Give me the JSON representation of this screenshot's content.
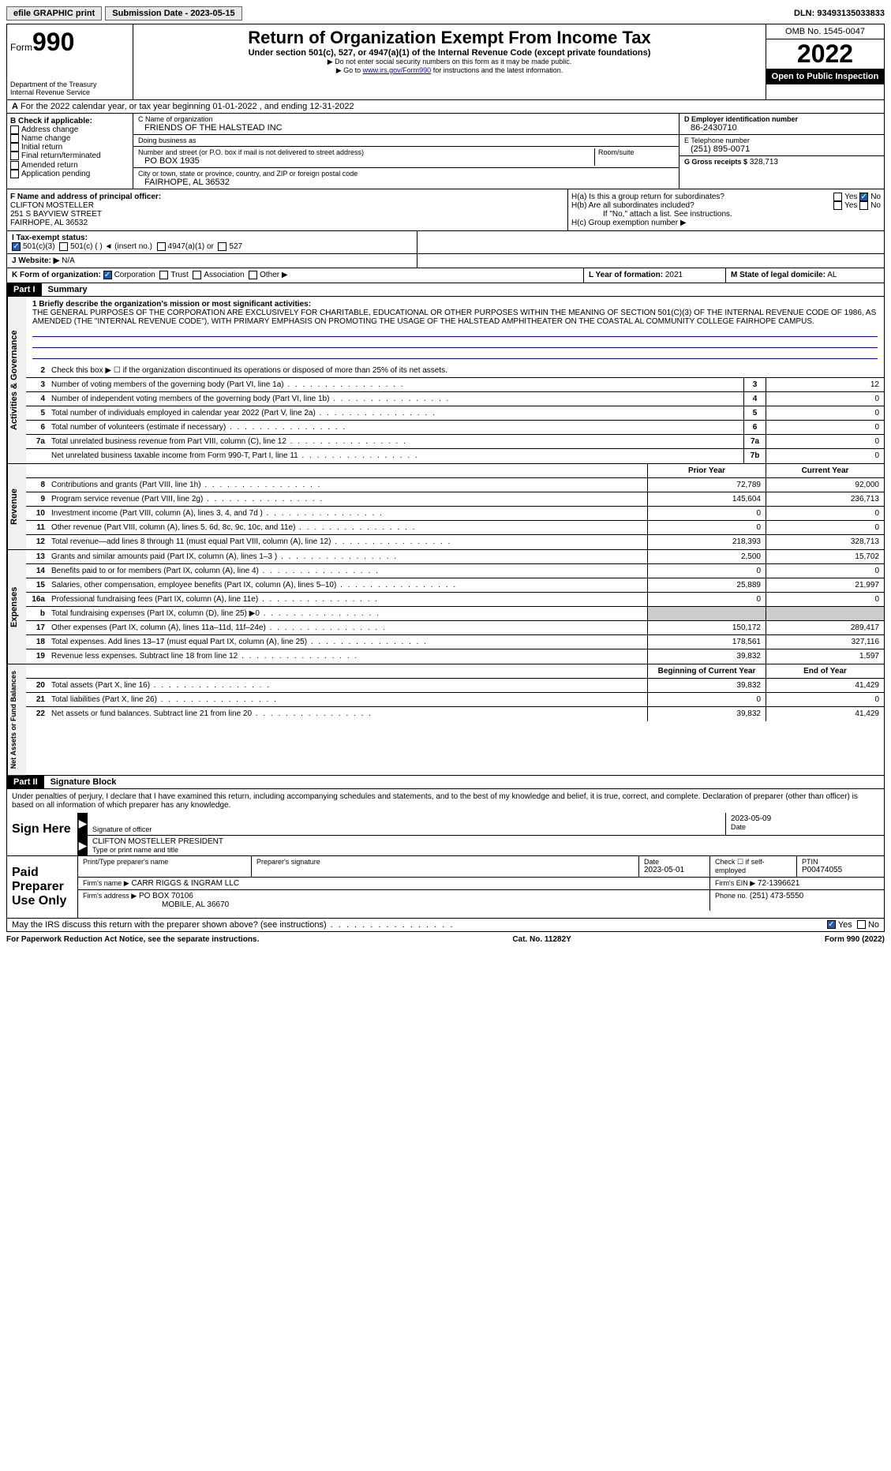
{
  "topbar": {
    "efile": "efile GRAPHIC print",
    "submission": "Submission Date - 2023-05-15",
    "dln": "DLN: 93493135033833"
  },
  "header": {
    "form_word": "Form",
    "form_num": "990",
    "dept": "Department of the Treasury",
    "irs": "Internal Revenue Service",
    "title": "Return of Organization Exempt From Income Tax",
    "sub1": "Under section 501(c), 527, or 4947(a)(1) of the Internal Revenue Code (except private foundations)",
    "sub2": "Do not enter social security numbers on this form as it may be made public.",
    "sub3_pre": "Go to ",
    "sub3_link": "www.irs.gov/Form990",
    "sub3_post": " for instructions and the latest information.",
    "omb": "OMB No. 1545-0047",
    "year": "2022",
    "open": "Open to Public Inspection"
  },
  "A": {
    "text": "For the 2022 calendar year, or tax year beginning 01-01-2022   , and ending 12-31-2022"
  },
  "B": {
    "label": "B Check if applicable:",
    "opts": [
      "Address change",
      "Name change",
      "Initial return",
      "Final return/terminated",
      "Amended return",
      "Application pending"
    ]
  },
  "C": {
    "name_label": "C Name of organization",
    "name": "FRIENDS OF THE HALSTEAD INC",
    "dba_label": "Doing business as",
    "dba": "",
    "addr_label": "Number and street (or P.O. box if mail is not delivered to street address)",
    "room_label": "Room/suite",
    "addr": "PO BOX 1935",
    "city_label": "City or town, state or province, country, and ZIP or foreign postal code",
    "city": "FAIRHOPE, AL  36532"
  },
  "D": {
    "label": "D Employer identification number",
    "val": "86-2430710"
  },
  "E": {
    "label": "E Telephone number",
    "val": "(251) 895-0071"
  },
  "G": {
    "label": "G Gross receipts $",
    "val": "328,713"
  },
  "F": {
    "label": "F  Name and address of principal officer:",
    "name": "CLIFTON MOSTELLER",
    "addr1": "251 S BAYVIEW STREET",
    "addr2": "FAIRHOPE, AL  36532"
  },
  "H": {
    "a": "H(a)  Is this a group return for subordinates?",
    "b": "H(b)  Are all subordinates included?",
    "b_note": "If \"No,\" attach a list. See instructions.",
    "c": "H(c)  Group exemption number ▶",
    "yes": "Yes",
    "no": "No"
  },
  "I": {
    "label": "I   Tax-exempt status:",
    "o1": "501(c)(3)",
    "o2": "501(c) (  ) ◄ (insert no.)",
    "o3": "4947(a)(1) or",
    "o4": "527"
  },
  "J": {
    "label": "J   Website: ▶",
    "val": "N/A"
  },
  "K": {
    "label": "K Form of organization:",
    "o1": "Corporation",
    "o2": "Trust",
    "o3": "Association",
    "o4": "Other ▶"
  },
  "L": {
    "label": "L Year of formation:",
    "val": "2021"
  },
  "M": {
    "label": "M State of legal domicile:",
    "val": "AL"
  },
  "part1": {
    "hdr": "Part I",
    "title": "Summary",
    "l1_label": "1  Briefly describe the organization's mission or most significant activities:",
    "mission": "THE GENERAL PURPOSES OF THE CORPORATION ARE EXCLUSIVELY FOR CHARITABLE, EDUCATIONAL OR OTHER PURPOSES WITHIN THE MEANING OF SECTION 501(C)(3) OF THE INTERNAL REVENUE CODE OF 1986, AS AMENDED (THE \"INTERNAL REVENUE CODE\"), WITH PRIMARY EMPHASIS ON PROMOTING THE USAGE OF THE HALSTEAD AMPHITHEATER ON THE COASTAL AL COMMUNITY COLLEGE FAIRHOPE CAMPUS.",
    "sections": {
      "gov": "Activities & Governance",
      "rev": "Revenue",
      "exp": "Expenses",
      "net": "Net Assets or Fund Balances"
    },
    "rows": [
      {
        "n": "2",
        "d": "Check this box ▶ ☐  if the organization discontinued its operations or disposed of more than 25% of its net assets."
      },
      {
        "n": "3",
        "d": "Number of voting members of the governing body (Part VI, line 1a)",
        "box": "3",
        "v": "12"
      },
      {
        "n": "4",
        "d": "Number of independent voting members of the governing body (Part VI, line 1b)",
        "box": "4",
        "v": "0"
      },
      {
        "n": "5",
        "d": "Total number of individuals employed in calendar year 2022 (Part V, line 2a)",
        "box": "5",
        "v": "0"
      },
      {
        "n": "6",
        "d": "Total number of volunteers (estimate if necessary)",
        "box": "6",
        "v": "0"
      },
      {
        "n": "7a",
        "d": "Total unrelated business revenue from Part VIII, column (C), line 12",
        "box": "7a",
        "v": "0"
      },
      {
        "n": "",
        "d": "Net unrelated business taxable income from Form 990-T, Part I, line 11",
        "box": "7b",
        "v": "0"
      }
    ],
    "col_hdr": {
      "prior": "Prior Year",
      "current": "Current Year"
    },
    "rev_rows": [
      {
        "n": "8",
        "d": "Contributions and grants (Part VIII, line 1h)",
        "p": "72,789",
        "c": "92,000"
      },
      {
        "n": "9",
        "d": "Program service revenue (Part VIII, line 2g)",
        "p": "145,604",
        "c": "236,713"
      },
      {
        "n": "10",
        "d": "Investment income (Part VIII, column (A), lines 3, 4, and 7d )",
        "p": "0",
        "c": "0"
      },
      {
        "n": "11",
        "d": "Other revenue (Part VIII, column (A), lines 5, 6d, 8c, 9c, 10c, and 11e)",
        "p": "0",
        "c": "0"
      },
      {
        "n": "12",
        "d": "Total revenue—add lines 8 through 11 (must equal Part VIII, column (A), line 12)",
        "p": "218,393",
        "c": "328,713"
      }
    ],
    "exp_rows": [
      {
        "n": "13",
        "d": "Grants and similar amounts paid (Part IX, column (A), lines 1–3 )",
        "p": "2,500",
        "c": "15,702"
      },
      {
        "n": "14",
        "d": "Benefits paid to or for members (Part IX, column (A), line 4)",
        "p": "0",
        "c": "0"
      },
      {
        "n": "15",
        "d": "Salaries, other compensation, employee benefits (Part IX, column (A), lines 5–10)",
        "p": "25,889",
        "c": "21,997"
      },
      {
        "n": "16a",
        "d": "Professional fundraising fees (Part IX, column (A), line 11e)",
        "p": "0",
        "c": "0"
      },
      {
        "n": "b",
        "d": "Total fundraising expenses (Part IX, column (D), line 25) ▶0",
        "p": "",
        "c": "",
        "shade": true
      },
      {
        "n": "17",
        "d": "Other expenses (Part IX, column (A), lines 11a–11d, 11f–24e)",
        "p": "150,172",
        "c": "289,417"
      },
      {
        "n": "18",
        "d": "Total expenses. Add lines 13–17 (must equal Part IX, column (A), line 25)",
        "p": "178,561",
        "c": "327,116"
      },
      {
        "n": "19",
        "d": "Revenue less expenses. Subtract line 18 from line 12",
        "p": "39,832",
        "c": "1,597"
      }
    ],
    "net_hdr": {
      "b": "Beginning of Current Year",
      "e": "End of Year"
    },
    "net_rows": [
      {
        "n": "20",
        "d": "Total assets (Part X, line 16)",
        "p": "39,832",
        "c": "41,429"
      },
      {
        "n": "21",
        "d": "Total liabilities (Part X, line 26)",
        "p": "0",
        "c": "0"
      },
      {
        "n": "22",
        "d": "Net assets or fund balances. Subtract line 21 from line 20",
        "p": "39,832",
        "c": "41,429"
      }
    ]
  },
  "part2": {
    "hdr": "Part II",
    "title": "Signature Block",
    "penalties": "Under penalties of perjury, I declare that I have examined this return, including accompanying schedules and statements, and to the best of my knowledge and belief, it is true, correct, and complete. Declaration of preparer (other than officer) is based on all information of which preparer has any knowledge.",
    "sign_here": "Sign Here",
    "sig_officer": "Signature of officer",
    "sig_date": "2023-05-09",
    "date_label": "Date",
    "typed_name": "CLIFTON MOSTELLER  PRESIDENT",
    "typed_label": "Type or print name and title",
    "paid": "Paid Preparer Use Only",
    "prep_name_label": "Print/Type preparer's name",
    "prep_sig_label": "Preparer's signature",
    "prep_date_label": "Date",
    "prep_date": "2023-05-01",
    "self_emp": "Check ☐ if self-employed",
    "ptin_label": "PTIN",
    "ptin": "P00474055",
    "firm_name_label": "Firm's name    ▶",
    "firm_name": "CARR RIGGS & INGRAM LLC",
    "firm_ein_label": "Firm's EIN ▶",
    "firm_ein": "72-1396621",
    "firm_addr_label": "Firm's address ▶",
    "firm_addr1": "PO BOX 70106",
    "firm_addr2": "MOBILE, AL  36670",
    "phone_label": "Phone no.",
    "phone": "(251) 473-5550",
    "may_irs": "May the IRS discuss this return with the preparer shown above? (see instructions)",
    "yes": "Yes",
    "no": "No"
  },
  "footer": {
    "pra": "For Paperwork Reduction Act Notice, see the separate instructions.",
    "cat": "Cat. No. 11282Y",
    "form": "Form 990 (2022)"
  }
}
